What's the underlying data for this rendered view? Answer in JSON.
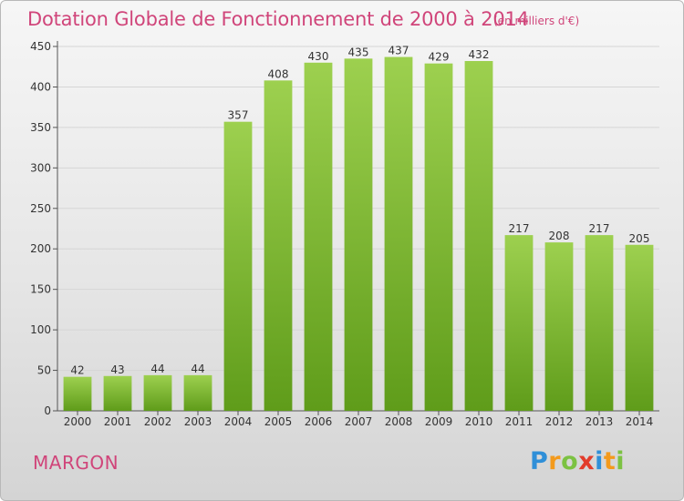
{
  "header": {
    "title": "Dotation Globale de Fonctionnement de 2000 à 2014",
    "unit": "(en milliers d'€)"
  },
  "footer": {
    "town": "MARGON",
    "logo_letters": [
      "P",
      "r",
      "o",
      "x",
      "i",
      "t",
      "i"
    ]
  },
  "colors": {
    "accent": "#d0457a",
    "bar_top": "#9dd04f",
    "bar_bottom": "#5f9c1a",
    "grid": "#d4d4d4"
  },
  "chart_data": {
    "type": "bar",
    "title": "Dotation Globale de Fonctionnement de 2000 à 2014",
    "subtitle": "(en milliers d'€)",
    "xlabel": "",
    "ylabel": "",
    "categories": [
      "2000",
      "2001",
      "2002",
      "2003",
      "2004",
      "2005",
      "2006",
      "2007",
      "2008",
      "2009",
      "2010",
      "2011",
      "2012",
      "2013",
      "2014"
    ],
    "values": [
      42,
      43,
      44,
      44,
      357,
      408,
      430,
      435,
      437,
      429,
      432,
      217,
      208,
      217,
      205
    ],
    "ylim": [
      0,
      450
    ],
    "yticks": [
      0,
      50,
      100,
      150,
      200,
      250,
      300,
      350,
      400,
      450
    ],
    "grid": true,
    "legend": "none"
  }
}
